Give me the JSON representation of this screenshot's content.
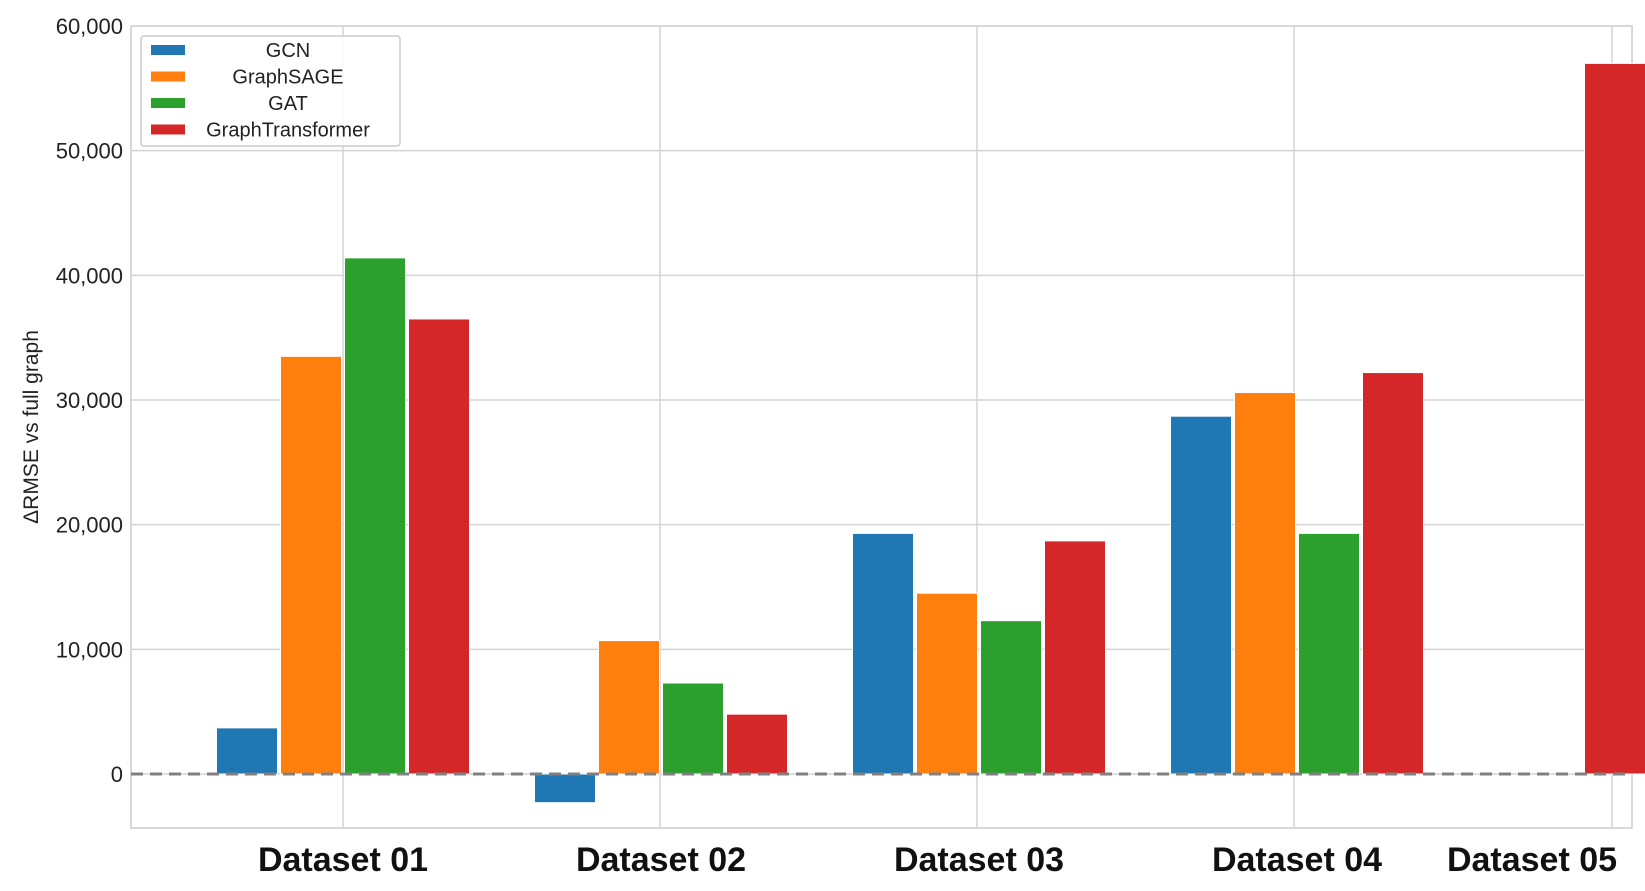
{
  "chart_data": {
    "type": "bar",
    "title": "",
    "xlabel": "",
    "ylabel": "ΔRMSE vs full graph",
    "ylim": [
      -4000,
      60000
    ],
    "yticks": [
      0,
      10000,
      20000,
      30000,
      40000,
      50000,
      60000
    ],
    "ytick_labels": [
      "0",
      "10,000",
      "20,000",
      "30,000",
      "40,000",
      "50,000",
      "60,000"
    ],
    "grid": true,
    "legend_position": "top-left",
    "reference_line": 0,
    "categories": [
      "Dataset 01",
      "Dataset 02",
      "Dataset 03",
      "Dataset 04",
      "Dataset 05"
    ],
    "series": [
      {
        "name": "GCN",
        "color": "#1f77b4",
        "values": [
          3700,
          -2300,
          19300,
          28700,
          null
        ]
      },
      {
        "name": "GraphSAGE",
        "color": "#ff7f0e",
        "values": [
          33500,
          10700,
          14500,
          30600,
          null
        ]
      },
      {
        "name": "GAT",
        "color": "#2ca02c",
        "values": [
          41400,
          7300,
          12300,
          19300,
          null
        ]
      },
      {
        "name": "GraphTransformer",
        "color": "#d62728",
        "values": [
          36500,
          4800,
          18700,
          32200,
          57000
        ]
      }
    ]
  }
}
